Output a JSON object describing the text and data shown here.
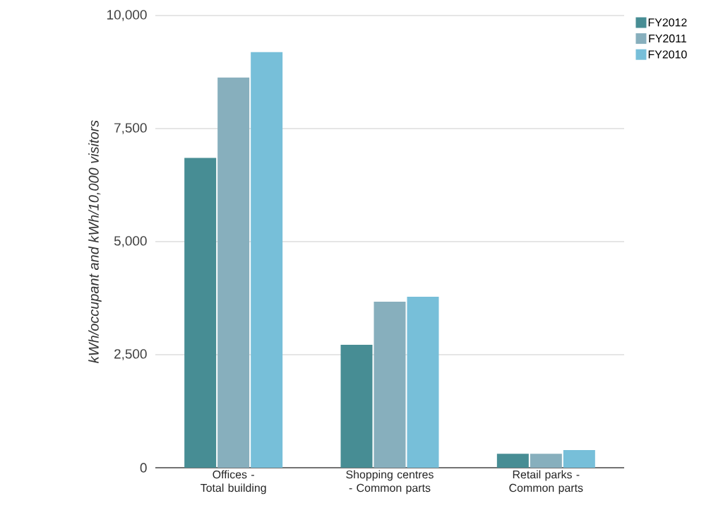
{
  "chart_data": {
    "type": "bar",
    "ylabel": "kWh/occupant and kWh/10,000 visitors",
    "categories": [
      "Offices - Total building",
      "Shopping centres - Common parts",
      "Retail parks - Common parts"
    ],
    "series": [
      {
        "name": "FY2012",
        "color": "#478d94",
        "values": [
          6850,
          2720,
          310
        ]
      },
      {
        "name": "FY2011",
        "color": "#87afbd",
        "values": [
          8630,
          3670,
          310
        ]
      },
      {
        "name": "FY2010",
        "color": "#77bfd9",
        "values": [
          9190,
          3780,
          390
        ]
      }
    ],
    "ylim": [
      0,
      10000
    ],
    "yticks": [
      0,
      {
        "value": 2500,
        "label": "2,500"
      },
      {
        "value": 5000,
        "label": "5,000"
      },
      {
        "value": 7500,
        "label": "7,500"
      },
      {
        "value": 10000,
        "label": "10,000"
      }
    ],
    "grid": "y",
    "legend": "top right"
  }
}
